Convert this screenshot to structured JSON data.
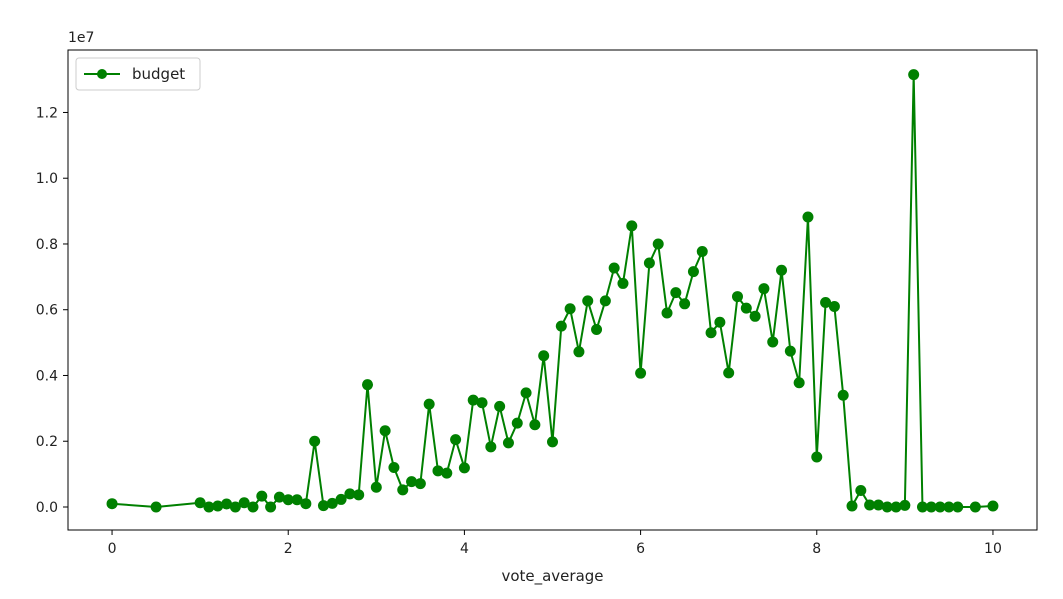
{
  "chart_data": {
    "type": "line",
    "title": "",
    "xlabel": "vote_average",
    "ylabel": "",
    "y_offset_label": "1e7",
    "xlim": [
      -0.5,
      10.5
    ],
    "ylim": [
      -0.07,
      1.39
    ],
    "x_ticks": [
      0,
      2,
      4,
      6,
      8,
      10
    ],
    "x_tick_labels": [
      "0",
      "2",
      "4",
      "6",
      "8",
      "10"
    ],
    "y_ticks": [
      0.0,
      0.2,
      0.4,
      0.6,
      0.8,
      1.0,
      1.2
    ],
    "y_tick_labels": [
      "0.0",
      "0.2",
      "0.4",
      "0.6",
      "0.8",
      "1.0",
      "1.2"
    ],
    "grid": false,
    "legend_position": "top-left",
    "series": [
      {
        "name": "budget",
        "color": "#008000",
        "marker": "circle",
        "x": [
          0.0,
          0.5,
          1.0,
          1.1,
          1.2,
          1.3,
          1.4,
          1.5,
          1.6,
          1.7,
          1.8,
          1.9,
          2.0,
          2.1,
          2.2,
          2.3,
          2.4,
          2.5,
          2.6,
          2.7,
          2.8,
          2.9,
          3.0,
          3.1,
          3.2,
          3.3,
          3.4,
          3.5,
          3.6,
          3.7,
          3.8,
          3.9,
          4.0,
          4.1,
          4.2,
          4.3,
          4.4,
          4.5,
          4.6,
          4.7,
          4.8,
          4.9,
          5.0,
          5.1,
          5.2,
          5.3,
          5.4,
          5.5,
          5.6,
          5.7,
          5.8,
          5.9,
          6.0,
          6.1,
          6.2,
          6.3,
          6.4,
          6.5,
          6.6,
          6.7,
          6.8,
          6.9,
          7.0,
          7.1,
          7.2,
          7.3,
          7.4,
          7.5,
          7.6,
          7.7,
          7.8,
          7.9,
          8.0,
          8.1,
          8.2,
          8.3,
          8.4,
          8.5,
          8.6,
          8.7,
          8.8,
          8.9,
          9.0,
          9.1,
          9.2,
          9.3,
          9.4,
          9.5,
          9.6,
          9.8,
          10.0
        ],
        "values": [
          0.01,
          0.0,
          0.013,
          0.0,
          0.003,
          0.009,
          0.0,
          0.013,
          0.0,
          0.033,
          0.0,
          0.03,
          0.022,
          0.022,
          0.01,
          0.2,
          0.004,
          0.011,
          0.023,
          0.04,
          0.037,
          0.372,
          0.06,
          0.232,
          0.12,
          0.052,
          0.077,
          0.071,
          0.313,
          0.11,
          0.103,
          0.205,
          0.119,
          0.325,
          0.317,
          0.183,
          0.306,
          0.195,
          0.255,
          0.347,
          0.25,
          0.46,
          0.198,
          0.55,
          0.603,
          0.472,
          0.627,
          0.54,
          0.627,
          0.727,
          0.68,
          0.855,
          0.407,
          0.742,
          0.8,
          0.59,
          0.652,
          0.618,
          0.716,
          0.777,
          0.53,
          0.562,
          0.408,
          0.64,
          0.605,
          0.58,
          0.664,
          0.502,
          0.72,
          0.474,
          0.378,
          0.882,
          0.152,
          0.622,
          0.61,
          0.34,
          0.003,
          0.05,
          0.006,
          0.006,
          0.0,
          0.0,
          0.005,
          1.315,
          0.0,
          0.0,
          0.0,
          0.0,
          0.0,
          0.0,
          0.003
        ]
      }
    ]
  }
}
